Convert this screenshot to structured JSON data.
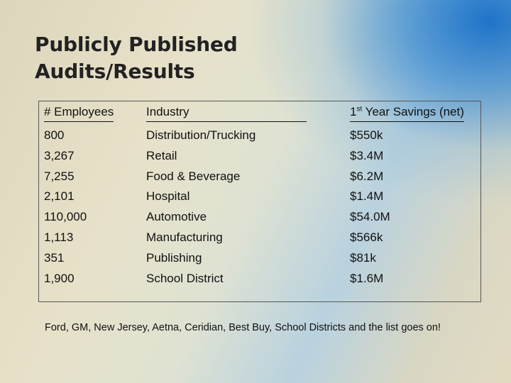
{
  "slide": {
    "title_line1": "Publicly Published",
    "title_line2": "Audits/Results"
  },
  "table": {
    "headers": {
      "employees": "# Employees",
      "industry": "Industry",
      "savings_prefix": "1",
      "savings_sup": "st",
      "savings_rest": " Year Savings (net)"
    },
    "rows": [
      {
        "employees": "800",
        "industry": "Distribution/Trucking",
        "savings": "$550k"
      },
      {
        "employees": "3,267",
        "industry": "Retail",
        "savings": "$3.4M"
      },
      {
        "employees": "7,255",
        "industry": "Food & Beverage",
        "savings": "$6.2M"
      },
      {
        "employees": "2,101",
        "industry": "Hospital",
        "savings": "$1.4M"
      },
      {
        "employees": "110,000",
        "industry": "Automotive",
        "savings": "$54.0M"
      },
      {
        "employees": "1,113",
        "industry": "Manufacturing",
        "savings": "$566k"
      },
      {
        "employees": "351",
        "industry": "Publishing",
        "savings": "$81k"
      },
      {
        "employees": "1,900",
        "industry": "School District",
        "savings": "$1.6M"
      }
    ]
  },
  "footer": {
    "text": "Ford, GM, New Jersey, Aetna, Ceridian, Best Buy, School Districts and the list goes on!"
  }
}
